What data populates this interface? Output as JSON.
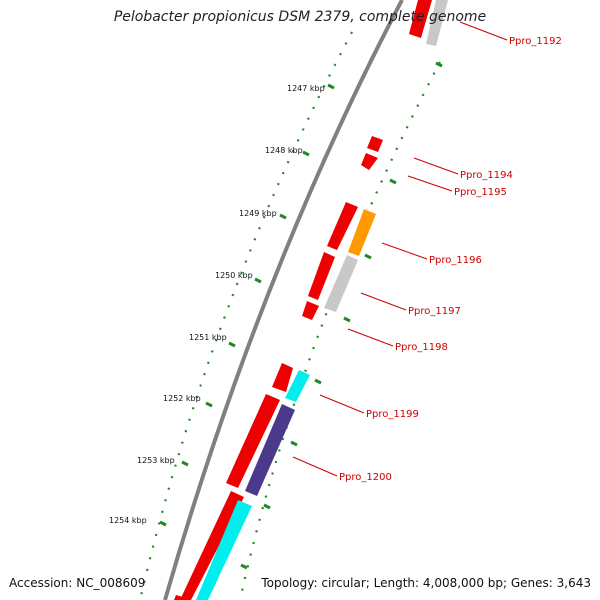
{
  "title": "Pelobacter propionicus DSM 2379, complete genome",
  "footer": {
    "accession": "Accession: NC_008609",
    "summary": "Topology: circular; Length: 4,008,000 bp; Genes: 3,643"
  },
  "colors": {
    "backbone": "#808080",
    "tick": "#228822",
    "forward_cds": "#ee0000",
    "reverse_cds_red": "#ee0000",
    "orange_cds": "#ff9900",
    "gray_cds": "#c8c8c8",
    "cyan_cds": "#00eeee",
    "purple_cds": "#4b3a8c",
    "label": "#cc0000"
  },
  "scale_labels": [
    "1247 kbp",
    "1248 kbp",
    "1249 kbp",
    "1250 kbp",
    "1251 kbp",
    "1252 kbp",
    "1253 kbp",
    "1254 kbp"
  ],
  "gene_labels": [
    "Ppro_1192",
    "Ppro_1194",
    "Ppro_1195",
    "Ppro_1196",
    "Ppro_1197",
    "Ppro_1198",
    "Ppro_1199",
    "Ppro_1200"
  ]
}
